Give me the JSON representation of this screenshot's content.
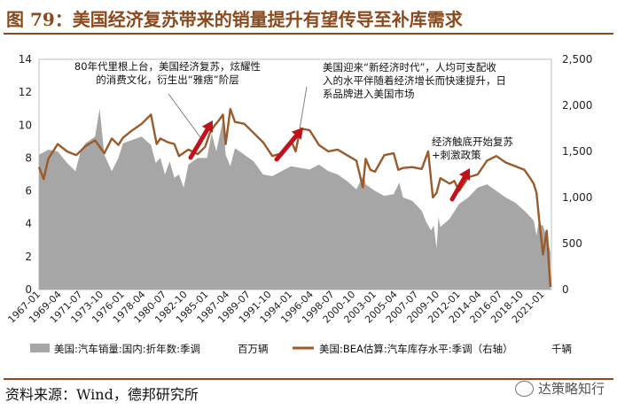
{
  "figure": {
    "title": "图 79：美国经济复苏带来的销量提升有望传导至补库需求",
    "source": "资料来源：Wind，德邦研究所",
    "watermark": "达策略知行"
  },
  "colors": {
    "title": "#8a4a1e",
    "area": "#a6a6a6",
    "line": "#9a5a2a",
    "arrow": "#c0121c",
    "leader": "#7f7f7f"
  },
  "chart_data": {
    "type": "area",
    "x_labels": [
      "1967-01",
      "1969-04",
      "1971-07",
      "1973-10",
      "1976-01",
      "1978-04",
      "1980-07",
      "1982-10",
      "1985-01",
      "1987-04",
      "1989-07",
      "1991-10",
      "1994-01",
      "1996-04",
      "1998-07",
      "2000-10",
      "2003-01",
      "2005-04",
      "2007-07",
      "2009-10",
      "2012-01",
      "2014-04",
      "2016-07",
      "2018-10",
      "2021-01"
    ],
    "ylim_left": [
      0,
      14
    ],
    "yticks_left": [
      "0",
      "2",
      "4",
      "6",
      "8",
      "10",
      "12",
      "14"
    ],
    "ylim_right": [
      0,
      2500
    ],
    "yticks_right": [
      "0",
      "500",
      "1,000",
      "1,500",
      "2,000",
      "2,500"
    ],
    "series": [
      {
        "name": "美国:汽车销量:国内:折年数:季调 百万辆",
        "kind": "area",
        "axis": "left",
        "x": [
          1967.0,
          1968.0,
          1969.0,
          1970.0,
          1970.9,
          1971.5,
          1972.0,
          1973.0,
          1973.5,
          1974.0,
          1974.8,
          1975.5,
          1976.0,
          1977.0,
          1978.0,
          1979.0,
          1979.5,
          1980.0,
          1980.5,
          1981.0,
          1981.5,
          1982.0,
          1982.5,
          1983.0,
          1984.0,
          1985.0,
          1985.5,
          1986.0,
          1986.7,
          1987.0,
          1987.5,
          1988.0,
          1989.0,
          1990.0,
          1991.0,
          1992.0,
          1993.0,
          1994.0,
          1995.0,
          1996.0,
          1997.0,
          1998.0,
          1999.0,
          2000.0,
          2001.0,
          2001.8,
          2002.0,
          2003.0,
          2004.0,
          2005.0,
          2005.6,
          2006.0,
          2007.0,
          2008.0,
          2008.5,
          2009.0,
          2009.3,
          2009.6,
          2009.8,
          2010.0,
          2011.0,
          2012.0,
          2013.0,
          2014.0,
          2015.0,
          2016.0,
          2017.0,
          2018.0,
          2019.0,
          2020.0,
          2020.3,
          2020.5,
          2021.0,
          2021.5,
          2021.8
        ],
        "y": [
          8.2,
          8.5,
          8.4,
          7.7,
          7.2,
          8.5,
          8.9,
          9.3,
          11.0,
          8.2,
          7.2,
          8.0,
          8.9,
          9.1,
          9.3,
          8.8,
          7.7,
          8.0,
          7.0,
          7.8,
          6.8,
          7.0,
          6.2,
          7.6,
          8.0,
          8.0,
          9.5,
          8.4,
          10.3,
          8.2,
          7.5,
          8.6,
          8.2,
          7.8,
          7.0,
          6.9,
          7.2,
          7.5,
          7.4,
          7.3,
          7.6,
          7.2,
          7.0,
          6.6,
          6.1,
          7.0,
          6.4,
          6.0,
          5.7,
          5.8,
          6.5,
          5.6,
          5.4,
          4.8,
          4.1,
          3.6,
          3.9,
          2.5,
          4.4,
          3.8,
          4.3,
          5.2,
          5.6,
          6.2,
          6.4,
          6.0,
          5.6,
          5.3,
          4.8,
          4.2,
          3.3,
          4.0,
          3.9,
          3.0,
          2.3
        ]
      },
      {
        "name": "美国:BEA估算:汽车库存水平:季调（右轴） 千辆",
        "kind": "line",
        "axis": "right",
        "x": [
          1967.0,
          1967.5,
          1968.0,
          1969.0,
          1970.0,
          1971.0,
          1972.0,
          1973.0,
          1974.0,
          1974.8,
          1975.5,
          1976.0,
          1977.0,
          1978.0,
          1979.0,
          1979.6,
          1980.0,
          1980.8,
          1981.5,
          1982.0,
          1983.0,
          1984.0,
          1984.8,
          1985.3,
          1985.8,
          1986.3,
          1986.7,
          1987.0,
          1987.5,
          1988.0,
          1989.0,
          1990.0,
          1991.0,
          1992.0,
          1993.0,
          1994.0,
          1994.5,
          1995.0,
          1996.0,
          1997.0,
          1998.0,
          1999.0,
          2000.0,
          2001.0,
          2001.7,
          2002.0,
          2002.5,
          2003.0,
          2004.0,
          2005.0,
          2005.5,
          2006.0,
          2007.0,
          2008.0,
          2008.7,
          2009.2,
          2009.6,
          2010.0,
          2011.0,
          2011.5,
          2012.0,
          2013.0,
          2014.0,
          2015.0,
          2016.0,
          2017.0,
          2018.0,
          2019.0,
          2019.7,
          2020.0,
          2020.3,
          2020.6,
          2021.0,
          2021.4,
          2021.8
        ],
        "y": [
          1330,
          1200,
          1420,
          1580,
          1500,
          1460,
          1560,
          1620,
          1480,
          1640,
          1570,
          1650,
          1730,
          1800,
          1900,
          1580,
          1640,
          1600,
          1580,
          1450,
          1520,
          1470,
          1550,
          1700,
          1780,
          1840,
          1900,
          1580,
          1960,
          1820,
          1800,
          1700,
          1600,
          1450,
          1480,
          1620,
          1500,
          1750,
          1730,
          1570,
          1500,
          1520,
          1460,
          1400,
          1110,
          1420,
          1300,
          1280,
          1460,
          1480,
          1300,
          1320,
          1330,
          1310,
          1500,
          1000,
          1050,
          1210,
          1150,
          1180,
          1070,
          1220,
          1250,
          1400,
          1450,
          1380,
          1340,
          1300,
          1200,
          1150,
          1050,
          750,
          380,
          640,
          30
        ]
      }
    ],
    "annotations": [
      {
        "lines": [
          "80年代里根上台，美国经济复苏，炫耀性",
          "的消费文化，衍生出“雅痞”阶层"
        ]
      },
      {
        "lines": [
          "美国迎来“新经济时代”，人均可支配收",
          "入的水平伴随着经济增长而快速提升，日",
          "系品牌进入美国市场"
        ]
      },
      {
        "lines": [
          "经济触底开始复苏",
          "+刺激政策"
        ]
      }
    ],
    "legend": [
      {
        "label": "美国:汽车销量:国内:折年数:季调",
        "unit": "百万辆"
      },
      {
        "label": "美国:BEA估算:汽车库存水平:季调（右轴）",
        "unit": "千辆"
      }
    ],
    "legend_position": "bottom"
  }
}
